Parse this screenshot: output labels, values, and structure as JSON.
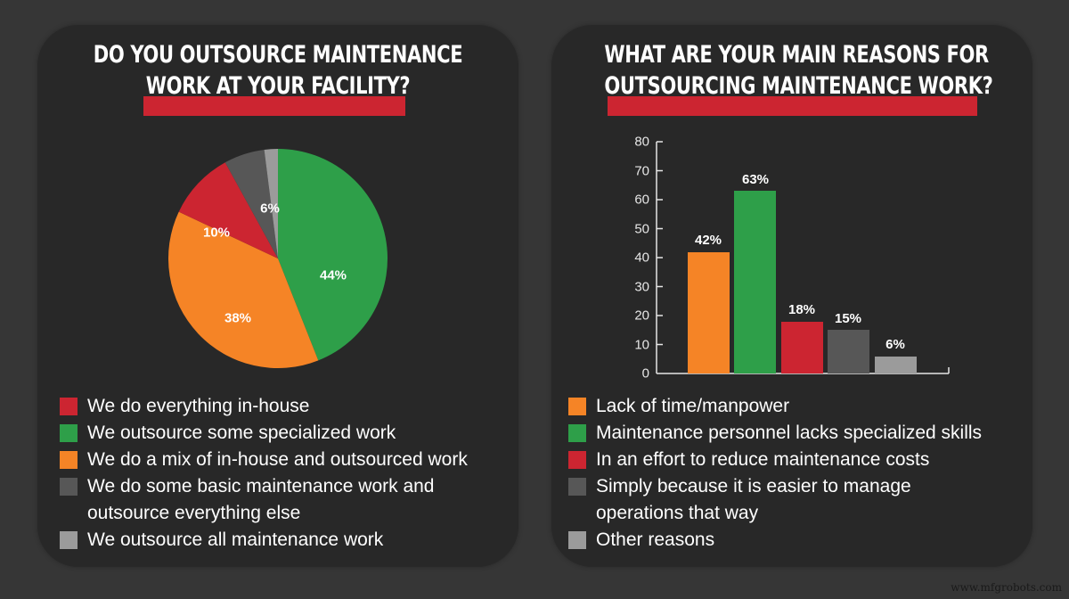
{
  "colors": {
    "red": "#cc2531",
    "green": "#2e9f49",
    "orange": "#f58426",
    "dark_gray": "#575757",
    "light_gray": "#9b9b9b",
    "panel": "#282828",
    "background": "#363636"
  },
  "left": {
    "title_line1": "DO YOU OUTSOURCE MAINTENANCE",
    "title_line2": "WORK AT YOUR FACILITY?",
    "slice_labels": [
      "44%",
      "38%",
      "10%",
      "6%"
    ],
    "legend": [
      {
        "label": "We do everything in-house",
        "color": "#cc2531"
      },
      {
        "label": "We outsource some specialized work",
        "color": "#2e9f49"
      },
      {
        "label": "We do a mix of in-house and outsourced work",
        "color": "#f58426"
      },
      {
        "label": "We do some basic maintenance work and outsource everything else",
        "color": "#575757"
      },
      {
        "label": "We outsource all maintenance work",
        "color": "#9b9b9b"
      }
    ]
  },
  "right": {
    "title_line1": "WHAT ARE YOUR MAIN REASONS FOR",
    "title_line2": "OUTSOURCING MAINTENANCE WORK?",
    "yticks": [
      "0",
      "10",
      "20",
      "30",
      "40",
      "50",
      "60",
      "70",
      "80"
    ],
    "bar_labels": [
      "42%",
      "63%",
      "18%",
      "15%",
      "6%"
    ],
    "legend": [
      {
        "label": "Lack of time/manpower",
        "color": "#f58426"
      },
      {
        "label": "Maintenance personnel lacks specialized skills",
        "color": "#2e9f49"
      },
      {
        "label": "In an effort to reduce maintenance costs",
        "color": "#cc2531"
      },
      {
        "label": "Simply because it is easier to manage operations that way",
        "color": "#575757"
      },
      {
        "label": "Other reasons",
        "color": "#9b9b9b"
      }
    ]
  },
  "watermark": "www.mfgrobots.com",
  "chart_data": [
    {
      "type": "pie",
      "title": "Do you outsource maintenance work at your facility?",
      "categories": [
        "We outsource some specialized work",
        "We do a mix of in-house and outsourced work",
        "We do everything in-house",
        "We do some basic maintenance work and outsource everything else",
        "We outsource all maintenance work"
      ],
      "values": [
        44,
        38,
        10,
        6,
        2
      ],
      "labels": [
        "44%",
        "38%",
        "10%",
        "6%",
        ""
      ],
      "colors": [
        "#2e9f49",
        "#f58426",
        "#cc2531",
        "#575757",
        "#9b9b9b"
      ],
      "legend_position": "bottom"
    },
    {
      "type": "bar",
      "title": "What are your main reasons for outsourcing maintenance work?",
      "categories": [
        "Lack of time/manpower",
        "Maintenance personnel lacks specialized skills",
        "In an effort to reduce maintenance costs",
        "Simply because it is easier to manage operations that way",
        "Other reasons"
      ],
      "values": [
        42,
        63,
        18,
        15,
        6
      ],
      "labels": [
        "42%",
        "63%",
        "18%",
        "15%",
        "6%"
      ],
      "colors": [
        "#f58426",
        "#2e9f49",
        "#cc2531",
        "#575757",
        "#9b9b9b"
      ],
      "xlabel": "",
      "ylabel": "",
      "ylim": [
        0,
        80
      ],
      "yticks": [
        0,
        10,
        20,
        30,
        40,
        50,
        60,
        70,
        80
      ],
      "grid": false,
      "legend_position": "bottom"
    }
  ]
}
